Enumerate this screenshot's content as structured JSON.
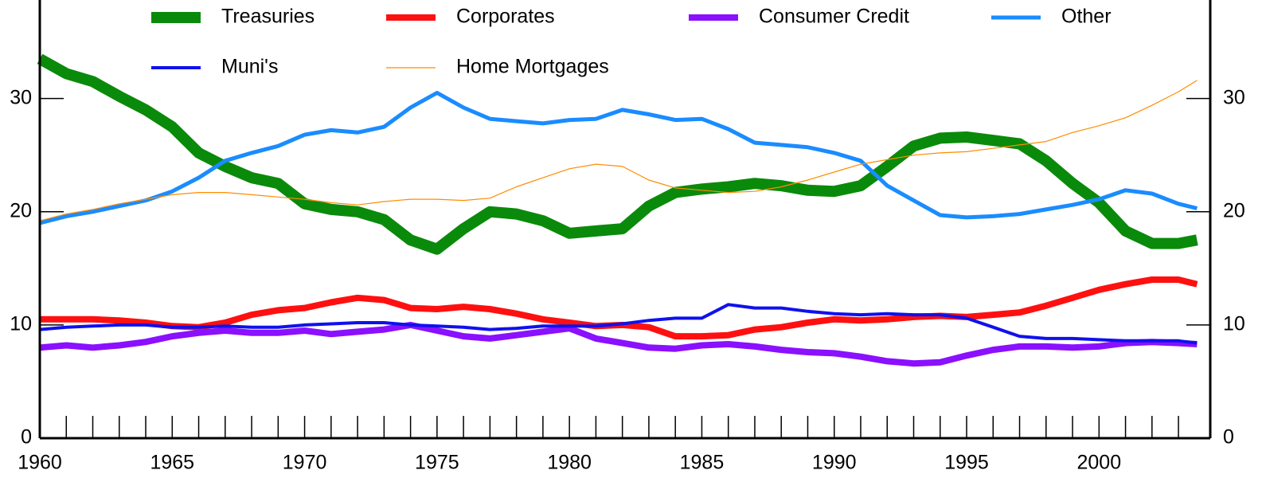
{
  "chart_data": {
    "type": "line",
    "x": [
      1960,
      1961,
      1962,
      1963,
      1964,
      1965,
      1966,
      1967,
      1968,
      1969,
      1970,
      1971,
      1972,
      1973,
      1974,
      1975,
      1976,
      1977,
      1978,
      1979,
      1980,
      1981,
      1982,
      1983,
      1984,
      1985,
      1986,
      1987,
      1988,
      1989,
      1990,
      1991,
      1992,
      1993,
      1994,
      1995,
      1996,
      1997,
      1998,
      1999,
      2000,
      2001,
      2002,
      2003,
      2003.7
    ],
    "series": [
      {
        "name": "Treasuries",
        "color": "#0a8a0a",
        "width": 14,
        "values": [
          33.5,
          32.2,
          31.5,
          30.2,
          29,
          27.5,
          25.2,
          24,
          23,
          22.5,
          20.7,
          20.2,
          20,
          19.3,
          17.5,
          16.7,
          18.5,
          20,
          19.8,
          19.2,
          18.1,
          18.3,
          18.5,
          20.5,
          21.7,
          22,
          22.2,
          22.5,
          22.3,
          21.9,
          21.8,
          22.3,
          24,
          25.8,
          26.5,
          26.6,
          26.3,
          26,
          24.5,
          22.5,
          20.8,
          18.3,
          17.2,
          17.2,
          17.5
        ]
      },
      {
        "name": "Corporates",
        "color": "#ff1010",
        "width": 8,
        "values": [
          10.5,
          10.5,
          10.5,
          10.4,
          10.2,
          9.9,
          9.8,
          10.2,
          10.9,
          11.3,
          11.5,
          12,
          12.4,
          12.2,
          11.5,
          11.4,
          11.6,
          11.4,
          11,
          10.5,
          10.2,
          9.9,
          10,
          9.8,
          9,
          9,
          9.1,
          9.6,
          9.8,
          10.2,
          10.5,
          10.4,
          10.5,
          10.7,
          10.8,
          10.7,
          10.9,
          11.1,
          11.7,
          12.4,
          13.1,
          13.6,
          14,
          14,
          13.6
        ]
      },
      {
        "name": "Consumer Credit",
        "color": "#8a10ff",
        "width": 8,
        "values": [
          8,
          8.2,
          8,
          8.2,
          8.5,
          9,
          9.3,
          9.5,
          9.3,
          9.3,
          9.5,
          9.2,
          9.4,
          9.6,
          10,
          9.5,
          9,
          8.8,
          9.1,
          9.4,
          9.7,
          8.8,
          8.4,
          8,
          7.9,
          8.2,
          8.3,
          8.1,
          7.8,
          7.6,
          7.5,
          7.2,
          6.8,
          6.6,
          6.7,
          7.3,
          7.8,
          8.1,
          8.1,
          8,
          8.1,
          8.4,
          8.5,
          8.4,
          8.3
        ]
      },
      {
        "name": "Other",
        "color": "#1a8cff",
        "width": 5,
        "values": [
          19,
          19.6,
          20,
          20.5,
          21,
          21.8,
          23,
          24.5,
          25.2,
          25.8,
          26.8,
          27.2,
          27,
          27.5,
          29.2,
          30.5,
          29.2,
          28.2,
          28,
          27.8,
          28.1,
          28.2,
          29,
          28.6,
          28.1,
          28.2,
          27.3,
          26.1,
          25.9,
          25.7,
          25.2,
          24.5,
          22.3,
          21,
          19.7,
          19.5,
          19.6,
          19.8,
          20.2,
          20.6,
          21.1,
          21.9,
          21.6,
          20.7,
          20.3
        ]
      },
      {
        "name": "Muni's",
        "color": "#1010ee",
        "width": 4,
        "values": [
          9.6,
          9.8,
          9.9,
          10,
          10,
          9.8,
          9.8,
          9.9,
          9.8,
          9.8,
          10,
          10.1,
          10.2,
          10.2,
          10,
          9.9,
          9.8,
          9.6,
          9.7,
          9.9,
          9.9,
          9.9,
          10.1,
          10.4,
          10.6,
          10.6,
          11.8,
          11.5,
          11.5,
          11.2,
          11,
          10.9,
          11,
          10.9,
          10.9,
          10.6,
          9.8,
          9,
          8.8,
          8.8,
          8.7,
          8.6,
          8.6,
          8.6,
          8.4
        ]
      },
      {
        "name": "Home Mortgages",
        "color": "#ff8c00",
        "width": 1.2,
        "values": [
          19.2,
          19.8,
          20.2,
          20.7,
          21.1,
          21.5,
          21.7,
          21.7,
          21.5,
          21.3,
          21.1,
          20.8,
          20.6,
          20.9,
          21.1,
          21.1,
          21,
          21.2,
          22.2,
          23,
          23.8,
          24.2,
          24,
          22.8,
          22.1,
          21.9,
          21.7,
          21.8,
          22.2,
          22.8,
          23.5,
          24.2,
          24.6,
          25,
          25.2,
          25.3,
          25.6,
          25.9,
          26.2,
          27,
          27.6,
          28.3,
          29.4,
          30.6,
          31.6
        ]
      }
    ],
    "xlim": [
      1960,
      2004.2
    ],
    "xticks": [
      1960,
      1965,
      1970,
      1975,
      1980,
      1985,
      1990,
      1995,
      2000
    ],
    "xminorticks": [
      1961,
      1962,
      1963,
      1964,
      1965,
      1966,
      1967,
      1968,
      1969,
      1970,
      1971,
      1972,
      1973,
      1974,
      1975,
      1976,
      1977,
      1978,
      1979,
      1980,
      1981,
      1982,
      1983,
      1984,
      1985,
      1986,
      1987,
      1988,
      1989,
      1990,
      1991,
      1992,
      1993,
      1994,
      1995,
      1996,
      1997,
      1998,
      1999,
      2000,
      2001,
      2002,
      2003
    ],
    "ylim": [
      0,
      38.7
    ],
    "yticks": [
      0,
      10,
      20,
      30
    ],
    "y2lim": [
      0,
      38.7
    ],
    "y2ticks": [
      0,
      10,
      20,
      30
    ],
    "legend": "top"
  }
}
